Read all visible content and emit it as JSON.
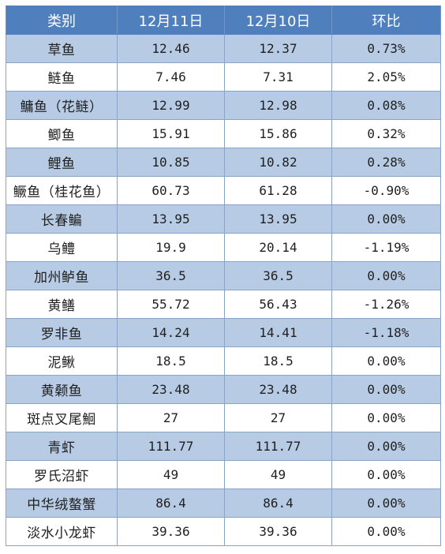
{
  "table": {
    "headers": [
      "类别",
      "12月11日",
      "12月10日",
      "环比"
    ],
    "rows": [
      {
        "name": "草鱼",
        "dec11": "12.46",
        "dec10": "12.37",
        "change": "0.73%"
      },
      {
        "name": "鲢鱼",
        "dec11": "7.46",
        "dec10": "7.31",
        "change": "2.05%"
      },
      {
        "name": "鳙鱼（花鲢）",
        "dec11": "12.99",
        "dec10": "12.98",
        "change": "0.08%"
      },
      {
        "name": "鲫鱼",
        "dec11": "15.91",
        "dec10": "15.86",
        "change": "0.32%"
      },
      {
        "name": "鲤鱼",
        "dec11": "10.85",
        "dec10": "10.82",
        "change": "0.28%"
      },
      {
        "name": "鳜鱼（桂花鱼）",
        "dec11": "60.73",
        "dec10": "61.28",
        "change": "-0.90%"
      },
      {
        "name": "长春鳊",
        "dec11": "13.95",
        "dec10": "13.95",
        "change": "0.00%"
      },
      {
        "name": "乌鳢",
        "dec11": "19.9",
        "dec10": "20.14",
        "change": "-1.19%"
      },
      {
        "name": "加州鲈鱼",
        "dec11": "36.5",
        "dec10": "36.5",
        "change": "0.00%"
      },
      {
        "name": "黄鳝",
        "dec11": "55.72",
        "dec10": "56.43",
        "change": "-1.26%"
      },
      {
        "name": "罗非鱼",
        "dec11": "14.24",
        "dec10": "14.41",
        "change": "-1.18%"
      },
      {
        "name": "泥鳅",
        "dec11": "18.5",
        "dec10": "18.5",
        "change": "0.00%"
      },
      {
        "name": "黄颡鱼",
        "dec11": "23.48",
        "dec10": "23.48",
        "change": "0.00%"
      },
      {
        "name": "斑点叉尾鮰",
        "dec11": "27",
        "dec10": "27",
        "change": "0.00%"
      },
      {
        "name": "青虾",
        "dec11": "111.77",
        "dec10": "111.77",
        "change": "0.00%"
      },
      {
        "name": "罗氏沼虾",
        "dec11": "49",
        "dec10": "49",
        "change": "0.00%"
      },
      {
        "name": "中华绒螯蟹",
        "dec11": "86.4",
        "dec10": "86.4",
        "change": "0.00%"
      },
      {
        "name": "淡水小龙虾",
        "dec11": "39.36",
        "dec10": "39.36",
        "change": "0.00%"
      }
    ]
  }
}
